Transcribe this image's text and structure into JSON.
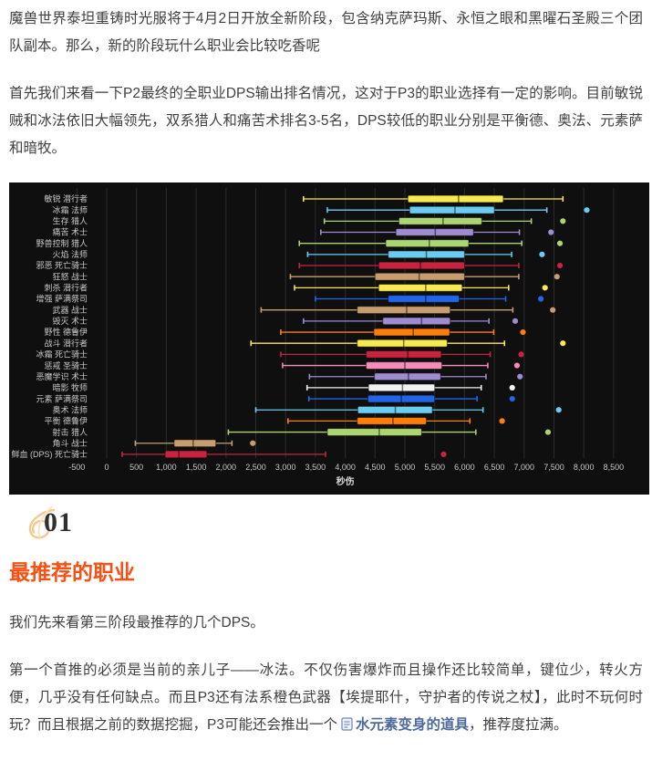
{
  "article": {
    "p1": "魔兽世界泰坦重铸时光服将于4月2日开放全新阶段，包含纳克萨玛斯、永恒之眼和黑曜石圣殿三个团队副本。那么，新的阶段玩什么职业会比较吃香呢",
    "p2": "首先我们来看一下P2最终的全职业DPS输出排名情况，这对于P3的职业选择有一定的影响。目前敏锐贼和冰法依旧大幅领先，双系猎人和痛苦术排名3-5名，DPS较低的职业分别是平衡德、奥法、元素萨和暗牧。",
    "section_number": "01",
    "heading": "最推荐的职业",
    "p3": "我们先来看第三阶段最推荐的几个DPS。",
    "p4_before_link": "第一个首推的必须是当前的亲儿子——冰法。不仅伤害爆炸而且操作还比较简单，键位少，转火方便，几乎没有任何缺点。而且P3还有法系橙色武器【埃提耶什，守护者的传说之杖】，此时不玩何时玩？而且根据之前的数据挖掘，P3可能还会推出一个",
    "p4_link": "水元素变身的道具",
    "p4_after_link": "，推荐度拉满。"
  },
  "colors": {
    "heading_accent": "#fa5014",
    "link": "#4f6b9d",
    "swirl": "#f5c98f",
    "body_text": "#404040",
    "chart_background": "#0f0f0f",
    "chart_grid": "#2c2c2c",
    "chart_text": "#c8c8c8"
  },
  "chart_data": {
    "type": "boxplot",
    "orientation": "horizontal",
    "xlabel": "秒伤",
    "x_ticks": [
      -500,
      0,
      500,
      1000,
      1500,
      2000,
      2500,
      3000,
      3500,
      4000,
      4500,
      5000,
      5500,
      6000,
      6500,
      7000,
      7500,
      8000,
      8500
    ],
    "xlim": [
      -500,
      8900
    ],
    "grid": true,
    "legend": "none",
    "series": [
      {
        "label": "敏锐 潜行者",
        "class": "rogue",
        "color": "#f7ea4e",
        "min": 3300,
        "q1": 5050,
        "median": 5900,
        "q3": 6650,
        "max": 7650,
        "outliers": []
      },
      {
        "label": "冰霜 法师",
        "class": "mage",
        "color": "#69ccf0",
        "min": 3700,
        "q1": 5080,
        "median": 5840,
        "q3": 6500,
        "max": 7380,
        "outliers": [
          8050
        ]
      },
      {
        "label": "生存 猎人",
        "class": "hunter",
        "color": "#abd473",
        "min": 3650,
        "q1": 4900,
        "median": 5640,
        "q3": 6290,
        "max": 7120,
        "outliers": [
          7650
        ]
      },
      {
        "label": "痛苦 术士",
        "class": "warlock",
        "color": "#9e8bd0",
        "min": 3590,
        "q1": 4850,
        "median": 5510,
        "q3": 6150,
        "max": 6920,
        "outliers": [
          7450
        ]
      },
      {
        "label": "野兽控制 猎人",
        "class": "hunter",
        "color": "#abd473",
        "min": 3230,
        "q1": 4680,
        "median": 5410,
        "q3": 6070,
        "max": 6960,
        "outliers": [
          7600
        ]
      },
      {
        "label": "火焰 法师",
        "class": "mage",
        "color": "#69ccf0",
        "min": 3370,
        "q1": 4720,
        "median": 5360,
        "q3": 6000,
        "max": 6790,
        "outliers": [
          7300
        ]
      },
      {
        "label": "邪恶 死亡骑士",
        "class": "dk",
        "color": "#c8233f",
        "min": 3230,
        "q1": 4560,
        "median": 5260,
        "q3": 6000,
        "max": 6910,
        "outliers": [
          7600
        ]
      },
      {
        "label": "狂怒 战士",
        "class": "warrior",
        "color": "#c79c6e",
        "min": 3080,
        "q1": 4500,
        "median": 5240,
        "q3": 6000,
        "max": 6910,
        "outliers": [
          7550
        ]
      },
      {
        "label": "刺杀 潜行者",
        "class": "rogue",
        "color": "#f7ea4e",
        "min": 3150,
        "q1": 4560,
        "median": 5350,
        "q3": 5960,
        "max": 6740,
        "outliers": [
          7350
        ]
      },
      {
        "label": "增强 萨满祭司",
        "class": "shaman",
        "color": "#2166e8",
        "min": 3500,
        "q1": 4720,
        "median": 5350,
        "q3": 5910,
        "max": 6690,
        "outliers": [
          7280
        ]
      },
      {
        "label": "武器 战士",
        "class": "warrior",
        "color": "#c79c6e",
        "min": 2590,
        "q1": 4200,
        "median": 5030,
        "q3": 5760,
        "max": 6810,
        "outliers": [
          7480
        ]
      },
      {
        "label": "毁灭 术士",
        "class": "warlock",
        "color": "#9e8bd0",
        "min": 3300,
        "q1": 4630,
        "median": 5280,
        "q3": 5760,
        "max": 6410,
        "outliers": [
          6850
        ]
      },
      {
        "label": "野性 德鲁伊",
        "class": "druid",
        "color": "#ff7d0a",
        "min": 2920,
        "q1": 4480,
        "median": 5140,
        "q3": 5750,
        "max": 6490,
        "outliers": [
          6980
        ]
      },
      {
        "label": "战斗 潜行者",
        "class": "rogue",
        "color": "#f7ea4e",
        "min": 2420,
        "q1": 4200,
        "median": 4980,
        "q3": 5710,
        "max": 6670,
        "outliers": [
          7650
        ]
      },
      {
        "label": "冰霜 死亡骑士",
        "class": "dk",
        "color": "#c8233f",
        "min": 2920,
        "q1": 4350,
        "median": 5050,
        "q3": 5610,
        "max": 6430,
        "outliers": [
          6950
        ]
      },
      {
        "label": "惩戒 圣骑士",
        "class": "paladin",
        "color": "#f58cba",
        "min": 2950,
        "q1": 4350,
        "median": 5000,
        "q3": 5620,
        "max": 6390,
        "outliers": [
          6880
        ]
      },
      {
        "label": "恶魔学识 术士",
        "class": "warlock",
        "color": "#9e8bd0",
        "min": 3400,
        "q1": 4490,
        "median": 5060,
        "q3": 5600,
        "max": 6360,
        "outliers": [
          6930
        ]
      },
      {
        "label": "暗影 牧师",
        "class": "priest",
        "color": "#f2f2f2",
        "min": 3360,
        "q1": 4390,
        "median": 4960,
        "q3": 5500,
        "max": 6280,
        "outliers": [
          6800
        ]
      },
      {
        "label": "元素 萨满祭司",
        "class": "shaman",
        "color": "#2166e8",
        "min": 3390,
        "q1": 4380,
        "median": 4940,
        "q3": 5500,
        "max": 6210,
        "outliers": [
          6800
        ]
      },
      {
        "label": "奥术 法师",
        "class": "mage",
        "color": "#69ccf0",
        "min": 2500,
        "q1": 4210,
        "median": 4840,
        "q3": 5460,
        "max": 6310,
        "outliers": [
          7580
        ]
      },
      {
        "label": "平衡 德鲁伊",
        "class": "druid",
        "color": "#ff7d0a",
        "min": 3040,
        "q1": 4200,
        "median": 4800,
        "q3": 5360,
        "max": 6090,
        "outliers": [
          6630
        ]
      },
      {
        "label": "射击 猎人",
        "class": "hunter",
        "color": "#abd473",
        "min": 2040,
        "q1": 3700,
        "median": 4570,
        "q3": 5280,
        "max": 6190,
        "outliers": [
          7400
        ]
      },
      {
        "label": "角斗 战士",
        "class": "warrior",
        "color": "#c79c6e",
        "min": 480,
        "q1": 1130,
        "median": 1450,
        "q3": 1830,
        "max": 2100,
        "outliers": [
          2450
        ]
      },
      {
        "label": "鲜血 (DPS) 死亡骑士",
        "class": "dk",
        "color": "#c8233f",
        "min": 260,
        "q1": 980,
        "median": 1210,
        "q3": 1680,
        "max": 3670,
        "outliers": [
          5650
        ]
      }
    ]
  }
}
